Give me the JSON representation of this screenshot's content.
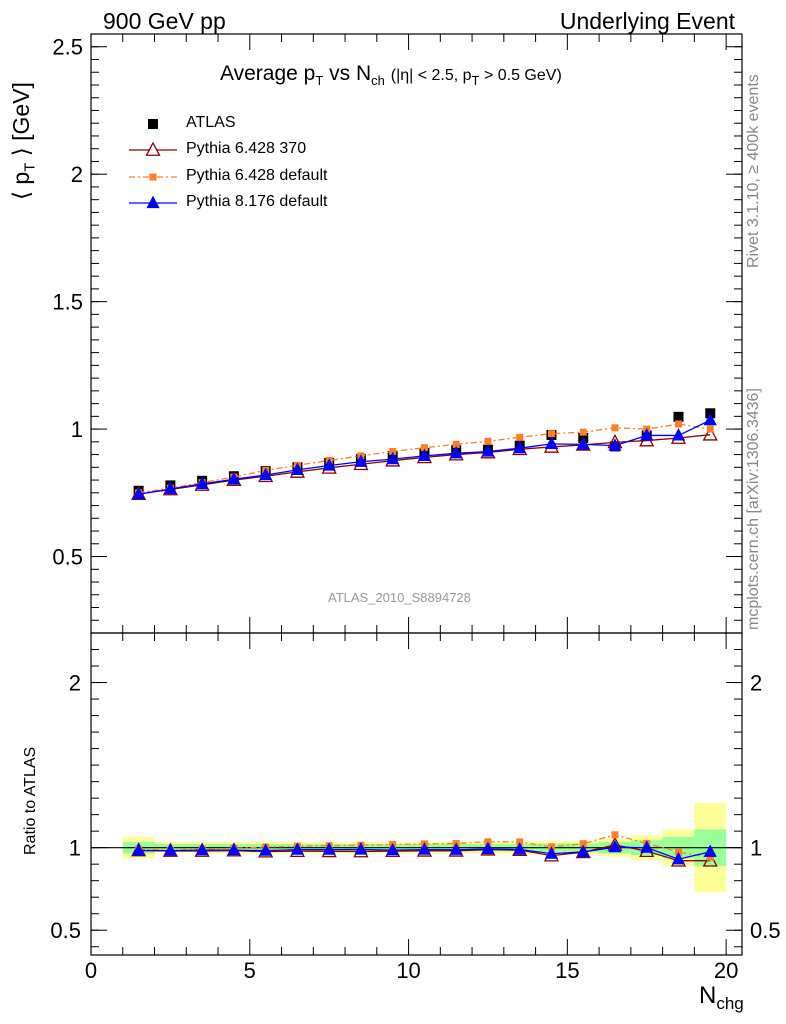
{
  "header": {
    "left": "900 GeV pp",
    "right": "Underlying Event"
  },
  "side_text": {
    "top": "Rivet 3.1.10, ≥ 400k events",
    "bottom": "mcplots.cern.ch [arXiv:1306.3436]"
  },
  "reference_label": "ATLAS_2010_S8894728",
  "colors": {
    "atlas": "#000000",
    "py6_370": "#8b0000",
    "py6_default": "#ff7f27",
    "py8_default": "#0000ff",
    "band_yellow": "#ffff99",
    "band_green": "#99ff99"
  },
  "chart_data": [
    {
      "type": "scatter",
      "title": {
        "main": "Average p",
        "main_sub": "T",
        "vs": " vs N",
        "vs_sub": "ch",
        "cuts_a": "(|η| < 2.5, p",
        "cuts_sub": "T",
        "cuts_b": " > 0.5 GeV)"
      },
      "ylabel": {
        "a": "⟨ p",
        "sub": "T",
        "b": " ⟩ [GeV]"
      },
      "xlim": [
        0,
        20.5
      ],
      "ylim": [
        0.2,
        2.55
      ],
      "yticks": [
        0.5,
        1,
        1.5,
        2,
        2.5
      ],
      "yticklabels": [
        "0.5",
        "1",
        "1.5",
        "2",
        "2.5"
      ],
      "legend_position": "top-left",
      "x": [
        1.5,
        2.5,
        3.5,
        4.5,
        5.5,
        6.5,
        7.5,
        8.5,
        9.5,
        10.5,
        11.5,
        12.5,
        13.5,
        14.5,
        15.5,
        16.5,
        17.5,
        18.5,
        19.5
      ],
      "series": [
        {
          "name": "ATLAS",
          "marker": "square",
          "values": [
            0.758,
            0.779,
            0.797,
            0.815,
            0.835,
            0.85,
            0.867,
            0.882,
            0.895,
            0.906,
            0.917,
            0.919,
            0.935,
            0.977,
            0.965,
            0.932,
            0.975,
            1.048,
            1.062
          ]
        },
        {
          "name": "Pythia 6.428 370",
          "marker": "open-triangle",
          "values": [
            0.745,
            0.763,
            0.781,
            0.8,
            0.815,
            0.832,
            0.848,
            0.862,
            0.876,
            0.889,
            0.9,
            0.908,
            0.921,
            0.93,
            0.938,
            0.948,
            0.955,
            0.965,
            0.978
          ]
        },
        {
          "name": "Pythia 6.428 default",
          "marker": "small-square",
          "dash": "dashdot",
          "values": [
            0.75,
            0.768,
            0.79,
            0.812,
            0.838,
            0.858,
            0.877,
            0.895,
            0.912,
            0.927,
            0.94,
            0.952,
            0.968,
            0.982,
            0.988,
            1.005,
            1.0,
            1.02,
            1.0
          ]
        },
        {
          "name": "Pythia 8.176 default",
          "marker": "triangle",
          "values": [
            0.745,
            0.765,
            0.785,
            0.803,
            0.82,
            0.84,
            0.857,
            0.872,
            0.882,
            0.895,
            0.905,
            0.912,
            0.925,
            0.942,
            0.94,
            0.935,
            0.975,
            0.975,
            1.035
          ]
        }
      ],
      "xticks": [
        0,
        5,
        10,
        15,
        20
      ]
    },
    {
      "type": "line",
      "ylabel": "Ratio to ATLAS",
      "xlabel": {
        "a": "N",
        "sub": "chg"
      },
      "xlim": [
        0,
        20.5
      ],
      "ylim": [
        0.35,
        2.3
      ],
      "yticks": [
        0.5,
        1,
        2
      ],
      "yticklabels": [
        "0.5",
        "1",
        "2"
      ],
      "xticks": [
        0,
        5,
        10,
        15,
        20
      ],
      "xticklabels": [
        "0",
        "5",
        "10",
        "15",
        "20"
      ],
      "bands": {
        "x_edges": [
          1,
          2,
          3,
          4,
          5,
          6,
          7,
          8,
          9,
          10,
          11,
          12,
          13,
          14,
          15,
          16,
          17,
          18,
          19,
          20
        ],
        "yellow_err": [
          0.065,
          0.035,
          0.035,
          0.035,
          0.035,
          0.035,
          0.035,
          0.035,
          0.035,
          0.035,
          0.035,
          0.035,
          0.035,
          0.04,
          0.04,
          0.055,
          0.075,
          0.11,
          0.27
        ],
        "green_err": [
          0.035,
          0.022,
          0.022,
          0.022,
          0.022,
          0.022,
          0.022,
          0.022,
          0.022,
          0.022,
          0.022,
          0.022,
          0.022,
          0.025,
          0.025,
          0.035,
          0.045,
          0.065,
          0.11
        ]
      },
      "x": [
        1.5,
        2.5,
        3.5,
        4.5,
        5.5,
        6.5,
        7.5,
        8.5,
        9.5,
        10.5,
        11.5,
        12.5,
        13.5,
        14.5,
        15.5,
        16.5,
        17.5,
        18.5,
        19.5
      ],
      "series": [
        {
          "name": "Pythia 6.428 370",
          "values": [
            0.983,
            0.98,
            0.98,
            0.982,
            0.976,
            0.979,
            0.978,
            0.977,
            0.979,
            0.981,
            0.981,
            0.988,
            0.985,
            0.952,
            0.972,
            1.017,
            0.979,
            0.921,
            0.921
          ]
        },
        {
          "name": "Pythia 6.428 default",
          "values": [
            0.99,
            0.986,
            0.991,
            0.996,
            1.004,
            1.009,
            1.012,
            1.015,
            1.019,
            1.023,
            1.025,
            1.036,
            1.035,
            1.005,
            1.024,
            1.078,
            1.026,
            0.973,
            0.942
          ]
        },
        {
          "name": "Pythia 8.176 default",
          "values": [
            0.983,
            0.982,
            0.985,
            0.985,
            0.982,
            0.988,
            0.988,
            0.989,
            0.985,
            0.988,
            0.987,
            0.992,
            0.989,
            0.964,
            0.974,
            1.003,
            1.0,
            0.93,
            0.975
          ]
        }
      ]
    }
  ]
}
